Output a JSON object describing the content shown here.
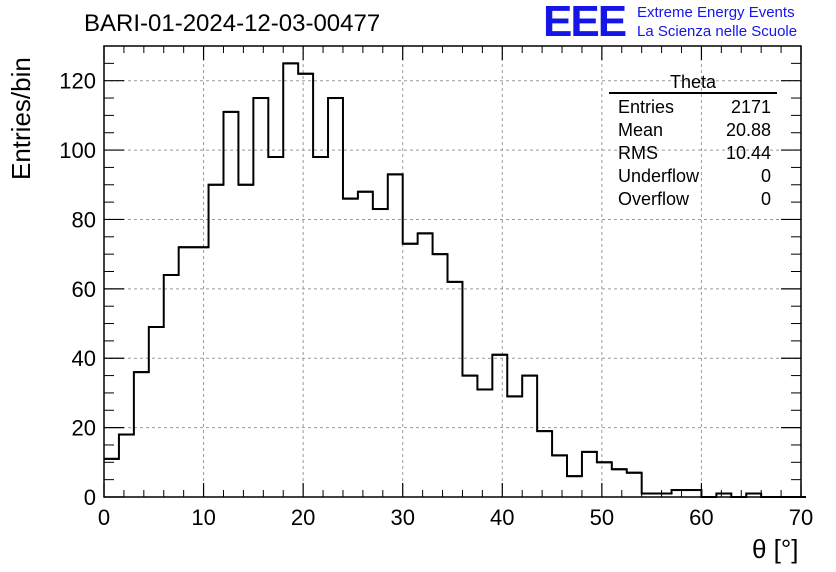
{
  "title": "BARI-01-2024-12-03-00477",
  "logo": {
    "mark": "EEE",
    "line1": "Extreme Energy Events",
    "line2": "La Scienza nelle Scuole",
    "color": "#1515e8"
  },
  "stats": {
    "name": "Theta",
    "rows": [
      {
        "label": "Entries",
        "value": "2171"
      },
      {
        "label": "Mean",
        "value": "20.88"
      },
      {
        "label": "RMS",
        "value": "10.44"
      },
      {
        "label": "Underflow",
        "value": "0"
      },
      {
        "label": "Overflow",
        "value": "0"
      }
    ]
  },
  "chart_data": {
    "type": "histogram",
    "title": "BARI-01-2024-12-03-00477",
    "xlabel": "θ [°]",
    "ylabel": "Entries/bin",
    "xlim": [
      0,
      70
    ],
    "ylim": [
      0,
      130
    ],
    "grid": true,
    "bin_width": 1.5,
    "bin_start": 0,
    "x_ticks": [
      0,
      10,
      20,
      30,
      40,
      50,
      60,
      70
    ],
    "y_ticks": [
      0,
      20,
      40,
      60,
      80,
      100,
      120
    ],
    "values": [
      11,
      18,
      36,
      49,
      64,
      72,
      72,
      90,
      111,
      90,
      115,
      98,
      125,
      122,
      98,
      115,
      86,
      88,
      83,
      93,
      73,
      76,
      70,
      62,
      35,
      31,
      41,
      29,
      35,
      19,
      12,
      6,
      13,
      10,
      8,
      7,
      1,
      1,
      2,
      2,
      0,
      1,
      0,
      1,
      0,
      0,
      0
    ]
  }
}
